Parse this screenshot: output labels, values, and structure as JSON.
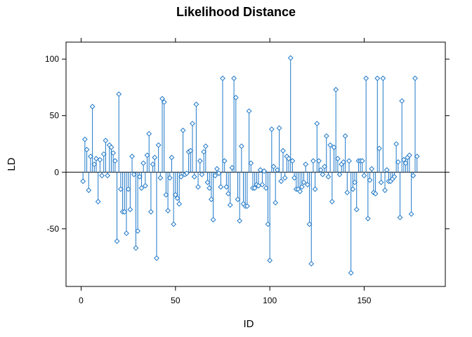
{
  "chart_data": {
    "type": "scatter",
    "title": "Likelihood Distance",
    "xlabel": "ID",
    "ylabel": "LD",
    "xlim": [
      -8,
      193
    ],
    "ylim": [
      -101,
      115
    ],
    "x_ticks": [
      0,
      50,
      100,
      150
    ],
    "y_ticks": [
      -50,
      0,
      50,
      100
    ],
    "reference_line_y": 0,
    "grid": false,
    "style": "stems with open diamond markers",
    "color": "#1f78c8",
    "x": [
      1,
      2,
      3,
      4,
      5,
      6,
      7,
      8,
      9,
      10,
      11,
      12,
      13,
      14,
      15,
      16,
      17,
      18,
      19,
      20,
      21,
      22,
      23,
      24,
      25,
      26,
      27,
      28,
      29,
      30,
      31,
      32,
      33,
      34,
      35,
      36,
      37,
      38,
      39,
      40,
      41,
      42,
      43,
      44,
      45,
      46,
      47,
      48,
      49,
      50,
      51,
      52,
      53,
      54,
      55,
      56,
      57,
      58,
      59,
      60,
      61,
      62,
      63,
      64,
      65,
      66,
      67,
      68,
      69,
      70,
      71,
      72,
      73,
      74,
      75,
      76,
      77,
      78,
      79,
      80,
      81,
      82,
      83,
      84,
      85,
      86,
      87,
      88,
      89,
      90,
      91,
      92,
      93,
      94,
      95,
      96,
      97,
      98,
      99,
      100,
      101,
      102,
      103,
      104,
      105,
      106,
      107,
      108,
      109,
      110,
      111,
      112,
      113,
      114,
      115,
      116,
      117,
      118,
      119,
      120,
      121,
      122,
      123,
      124,
      125,
      126,
      127,
      128,
      129,
      130,
      131,
      132,
      133,
      134,
      135,
      136,
      137,
      138,
      139,
      140,
      141,
      142,
      143,
      144,
      145,
      146,
      147,
      148,
      149,
      150,
      151,
      152,
      153,
      154,
      155,
      156,
      157,
      158,
      159,
      160,
      161,
      162,
      163,
      164,
      165,
      166,
      167,
      168,
      169,
      170,
      171,
      172,
      173,
      174,
      175,
      176,
      177,
      178
    ],
    "values": [
      -8,
      29,
      20,
      -16,
      14,
      58,
      7,
      12,
      -26,
      11,
      -3,
      16,
      28,
      -3,
      24,
      22,
      17,
      10,
      -61,
      69,
      -15,
      -35,
      -35,
      -54,
      -15,
      -33,
      14,
      -2,
      -67,
      -52,
      -4,
      -14,
      8,
      -12,
      15,
      34,
      -35,
      7,
      13,
      -76,
      24,
      -5,
      65,
      62,
      -20,
      -34,
      -5,
      13,
      -46,
      -20,
      -23,
      -28,
      -4,
      37,
      -2,
      -1,
      18,
      19,
      43,
      -4,
      60,
      -13,
      10,
      -2,
      18,
      23,
      -9,
      -14,
      -24,
      -42,
      -3,
      3,
      -1,
      -13,
      83,
      10,
      -13,
      -19,
      -29,
      4,
      83,
      66,
      -24,
      -43,
      23,
      -28,
      -30,
      -30,
      54,
      8,
      -14,
      -14,
      -11,
      -12,
      2,
      -11,
      1,
      -14,
      -46,
      -78,
      38,
      5,
      -27,
      2,
      39,
      -8,
      19,
      -5,
      14,
      12,
      101,
      10,
      -5,
      -15,
      -15,
      -17,
      -13,
      -9,
      7,
      -11,
      -46,
      -81,
      10,
      -15,
      43,
      10,
      2,
      -2,
      5,
      32,
      -4,
      24,
      -26,
      22,
      73,
      12,
      -2,
      7,
      9,
      32,
      -18,
      10,
      -89,
      -15,
      -9,
      -33,
      10,
      10,
      10,
      -3,
      83,
      -41,
      -7,
      3,
      -18,
      -19,
      83,
      21,
      -9,
      83,
      -16,
      2,
      -8,
      -8,
      -6,
      -4,
      25,
      9,
      -40,
      63,
      11,
      8,
      13,
      15,
      -37,
      -3,
      83,
      14
    ]
  }
}
